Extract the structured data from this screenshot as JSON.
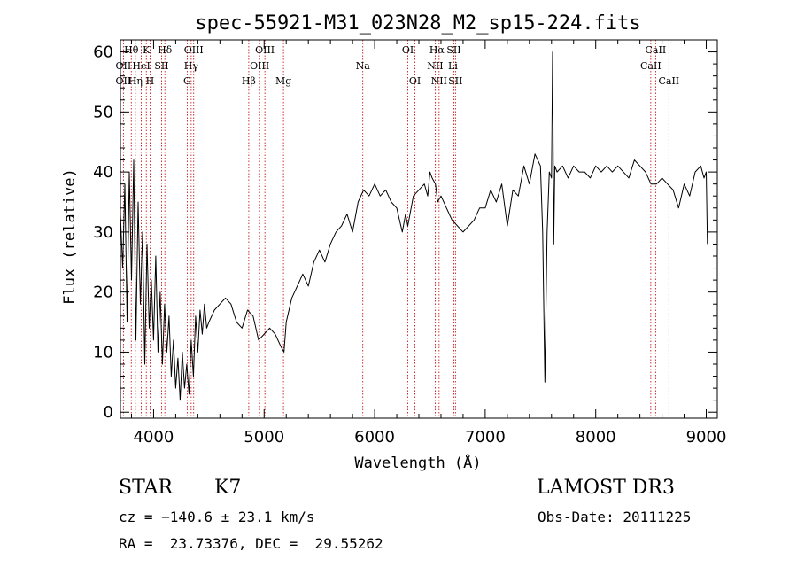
{
  "chart_data": {
    "type": "line",
    "title": "spec-55921-M31_023N28_M2_sp15-224.fits",
    "xlabel": "Wavelength (Å)",
    "ylabel": "Flux (relative)",
    "xlim": [
      3700,
      9100
    ],
    "ylim": [
      -1,
      62
    ],
    "xticks": [
      4000,
      5000,
      6000,
      7000,
      8000,
      9000
    ],
    "yticks": [
      0,
      10,
      20,
      30,
      40,
      50,
      60
    ],
    "series": [
      {
        "name": "flux",
        "x": [
          3700,
          3720,
          3740,
          3760,
          3780,
          3800,
          3820,
          3840,
          3860,
          3880,
          3900,
          3920,
          3940,
          3960,
          3980,
          4000,
          4020,
          4040,
          4060,
          4080,
          4100,
          4120,
          4140,
          4160,
          4180,
          4200,
          4220,
          4240,
          4260,
          4280,
          4300,
          4320,
          4340,
          4360,
          4380,
          4400,
          4420,
          4440,
          4460,
          4480,
          4500,
          4550,
          4600,
          4650,
          4700,
          4750,
          4800,
          4850,
          4900,
          4950,
          5000,
          5050,
          5100,
          5150,
          5180,
          5200,
          5250,
          5300,
          5350,
          5400,
          5450,
          5500,
          5550,
          5600,
          5650,
          5700,
          5750,
          5800,
          5850,
          5900,
          5950,
          6000,
          6050,
          6100,
          6150,
          6200,
          6250,
          6280,
          6300,
          6350,
          6400,
          6450,
          6480,
          6500,
          6520,
          6550,
          6570,
          6600,
          6650,
          6700,
          6750,
          6800,
          6850,
          6900,
          6950,
          7000,
          7050,
          7100,
          7150,
          7200,
          7250,
          7300,
          7350,
          7400,
          7450,
          7500,
          7520,
          7540,
          7560,
          7580,
          7600,
          7610,
          7620,
          7630,
          7650,
          7700,
          7750,
          7800,
          7850,
          7900,
          7950,
          8000,
          8050,
          8100,
          8150,
          8200,
          8250,
          8300,
          8350,
          8400,
          8450,
          8500,
          8550,
          8600,
          8650,
          8700,
          8750,
          8800,
          8850,
          8900,
          8950,
          8980,
          9000,
          9010
        ],
        "y": [
          33,
          24,
          38,
          15,
          40,
          22,
          42,
          12,
          35,
          18,
          30,
          8,
          28,
          14,
          22,
          12,
          26,
          10,
          20,
          8,
          18,
          10,
          16,
          6,
          12,
          4,
          9,
          2,
          10,
          4,
          8,
          3,
          12,
          6,
          16,
          10,
          17,
          13,
          18,
          14,
          15,
          17,
          18,
          19,
          18,
          15,
          14,
          17,
          16,
          12,
          13,
          14,
          13,
          11,
          10,
          15,
          19,
          21,
          23,
          21,
          25,
          27,
          25,
          28,
          30,
          31,
          33,
          30,
          35,
          37,
          36,
          38,
          36,
          37,
          35,
          34,
          30,
          33,
          31,
          36,
          37,
          38,
          36,
          40,
          39,
          38,
          35,
          36,
          34,
          32,
          31,
          30,
          31,
          32,
          34,
          34,
          37,
          35,
          38,
          31,
          37,
          36,
          41,
          38,
          43,
          41,
          30,
          5,
          30,
          40,
          39,
          60,
          28,
          41,
          40,
          41,
          39,
          41,
          40,
          40,
          39,
          41,
          40,
          41,
          40,
          41,
          40,
          39,
          42,
          41,
          40,
          38,
          38,
          39,
          38,
          37,
          34,
          38,
          36,
          40,
          41,
          39,
          40,
          28
        ],
        "color": "#000000"
      }
    ],
    "spectral_lines": [
      {
        "label": "Hθ",
        "wavelength": 3798,
        "row": 1
      },
      {
        "label": "K",
        "wavelength": 3934,
        "row": 1
      },
      {
        "label": "Hδ",
        "wavelength": 4102,
        "row": 1
      },
      {
        "label": "OIII",
        "wavelength": 4363,
        "row": 1
      },
      {
        "label": "OIII",
        "wavelength": 5007,
        "row": 1
      },
      {
        "label": "OI",
        "wavelength": 6300,
        "row": 1
      },
      {
        "label": "Hα",
        "wavelength": 6563,
        "row": 1
      },
      {
        "label": "SII",
        "wavelength": 6716,
        "row": 1
      },
      {
        "label": "CaII",
        "wavelength": 8542,
        "row": 1
      },
      {
        "label": "OII",
        "wavelength": 3727,
        "row": 2
      },
      {
        "label": "HeI",
        "wavelength": 3889,
        "row": 2
      },
      {
        "label": "SII",
        "wavelength": 4072,
        "row": 2
      },
      {
        "label": "Hγ",
        "wavelength": 4340,
        "row": 2
      },
      {
        "label": "OIII",
        "wavelength": 4959,
        "row": 2
      },
      {
        "label": "Na",
        "wavelength": 5893,
        "row": 2
      },
      {
        "label": "NII",
        "wavelength": 6548,
        "row": 2
      },
      {
        "label": "Li",
        "wavelength": 6708,
        "row": 2
      },
      {
        "label": "CaII",
        "wavelength": 8498,
        "row": 2
      },
      {
        "label": "OII",
        "wavelength": 3727,
        "row": 3
      },
      {
        "label": "Hη",
        "wavelength": 3835,
        "row": 3
      },
      {
        "label": "H",
        "wavelength": 3968,
        "row": 3
      },
      {
        "label": "G",
        "wavelength": 4304,
        "row": 3
      },
      {
        "label": "Hβ",
        "wavelength": 4861,
        "row": 3
      },
      {
        "label": "Mg",
        "wavelength": 5175,
        "row": 3
      },
      {
        "label": "OI",
        "wavelength": 6364,
        "row": 3
      },
      {
        "label": "NII",
        "wavelength": 6583,
        "row": 3
      },
      {
        "label": "SII",
        "wavelength": 6731,
        "row": 3
      },
      {
        "label": "CaII",
        "wavelength": 8662,
        "row": 3
      }
    ],
    "line_color": "#c00000"
  },
  "info": {
    "object_class": "STAR",
    "subclass": "K7",
    "survey": "LAMOST DR3",
    "cz": "cz = −140.6 ± 23.1 km/s",
    "obs_date": "Obs-Date: 20111225",
    "coords": "RA =  23.73376, DEC =  29.55262"
  }
}
